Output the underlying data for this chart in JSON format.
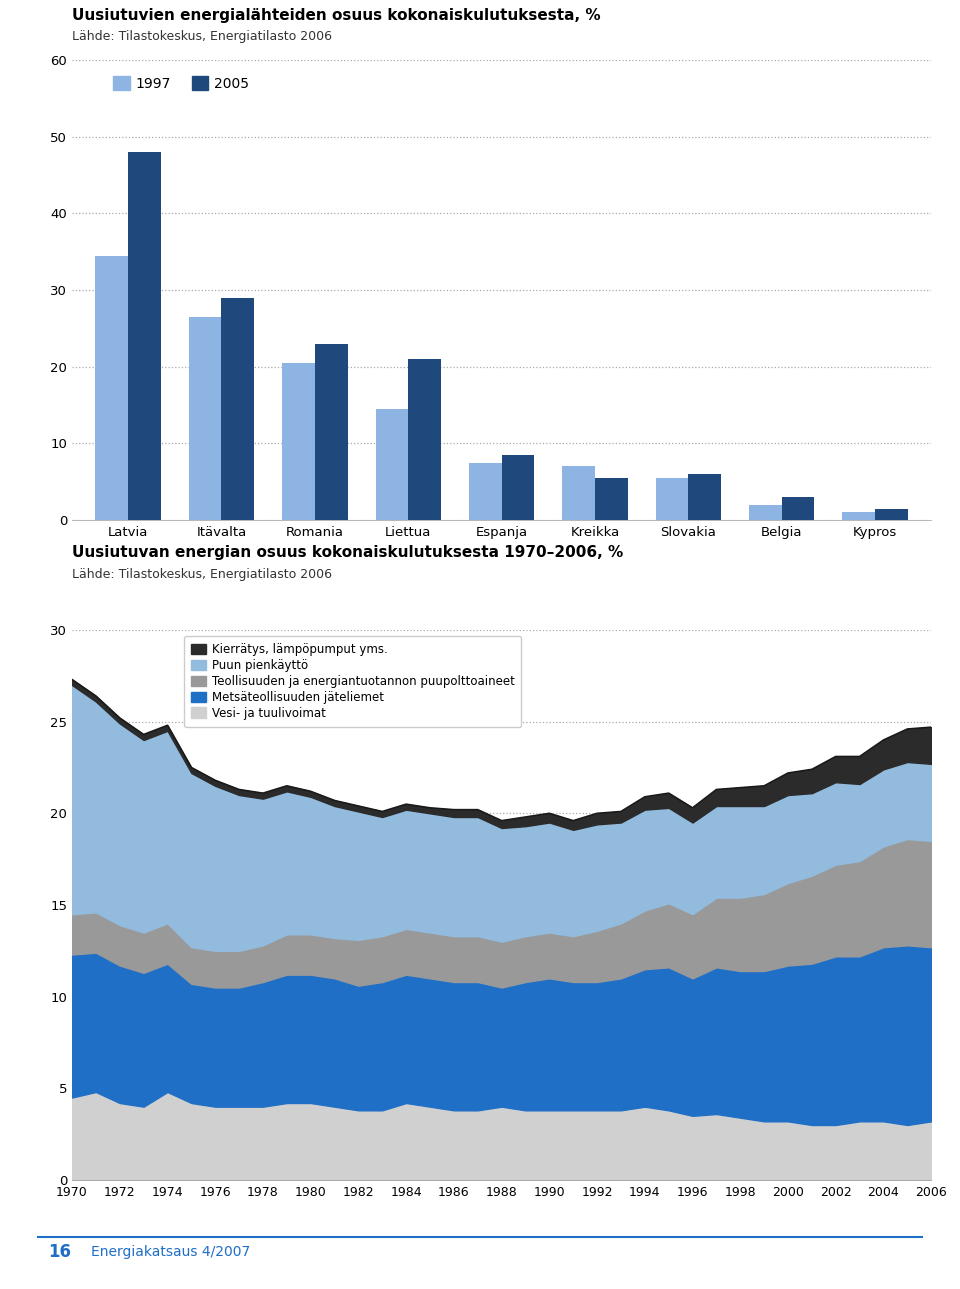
{
  "title1": "Uusiutuvien energialähteiden osuus kokonaiskulutuksesta, %",
  "subtitle1": "Lähde: Tilastokeskus, Energiatilasto 2006",
  "title2": "Uusiutuvan energian osuus kokonaiskulutuksesta 1970–2006, %",
  "subtitle2": "Lähde: Tilastokeskus, Energiatilasto 2006",
  "bar_categories": [
    "Latvia",
    "Itävalta",
    "Romania",
    "Liettua",
    "Espanja",
    "Kreikka",
    "Slovakia",
    "Belgia",
    "Kypros"
  ],
  "bar_color_1997": "#8DB4E2",
  "bar_color_2005": "#1F497D",
  "area_years": [
    1970,
    1971,
    1972,
    1973,
    1974,
    1975,
    1976,
    1977,
    1978,
    1979,
    1980,
    1981,
    1982,
    1983,
    1984,
    1985,
    1986,
    1987,
    1988,
    1989,
    1990,
    1991,
    1992,
    1993,
    1994,
    1995,
    1996,
    1997,
    1998,
    1999,
    2000,
    2001,
    2002,
    2003,
    2004,
    2005,
    2006
  ],
  "vesi_tuuli": [
    4.5,
    4.8,
    4.2,
    4.0,
    4.8,
    4.2,
    4.0,
    4.0,
    4.0,
    4.2,
    4.2,
    4.0,
    3.8,
    3.8,
    4.2,
    4.0,
    3.8,
    3.8,
    4.0,
    3.8,
    3.8,
    3.8,
    3.8,
    3.8,
    4.0,
    3.8,
    3.5,
    3.6,
    3.4,
    3.2,
    3.2,
    3.0,
    3.0,
    3.2,
    3.2,
    3.0,
    3.2
  ],
  "metsateollisuus": [
    7.8,
    7.6,
    7.5,
    7.3,
    7.0,
    6.5,
    6.5,
    6.5,
    6.8,
    7.0,
    7.0,
    7.0,
    6.8,
    7.0,
    7.0,
    7.0,
    7.0,
    7.0,
    6.5,
    7.0,
    7.2,
    7.0,
    7.0,
    7.2,
    7.5,
    7.8,
    7.5,
    8.0,
    8.0,
    8.2,
    8.5,
    8.8,
    9.2,
    9.0,
    9.5,
    9.8,
    9.5
  ],
  "teollisuus_puu": [
    2.2,
    2.2,
    2.2,
    2.2,
    2.2,
    2.0,
    2.0,
    2.0,
    2.0,
    2.2,
    2.2,
    2.2,
    2.5,
    2.5,
    2.5,
    2.5,
    2.5,
    2.5,
    2.5,
    2.5,
    2.5,
    2.5,
    2.8,
    3.0,
    3.2,
    3.5,
    3.5,
    3.8,
    4.0,
    4.2,
    4.5,
    4.8,
    5.0,
    5.2,
    5.5,
    5.8,
    5.8
  ],
  "puun_pienkaytto": [
    12.5,
    11.5,
    11.0,
    10.5,
    10.5,
    9.5,
    9.0,
    8.5,
    8.0,
    7.8,
    7.5,
    7.2,
    7.0,
    6.5,
    6.5,
    6.5,
    6.5,
    6.5,
    6.2,
    6.0,
    6.0,
    5.8,
    5.8,
    5.5,
    5.5,
    5.2,
    5.0,
    5.0,
    5.0,
    4.8,
    4.8,
    4.5,
    4.5,
    4.2,
    4.2,
    4.2,
    4.2
  ],
  "kierratys": [
    0.3,
    0.3,
    0.3,
    0.3,
    0.3,
    0.3,
    0.3,
    0.3,
    0.3,
    0.3,
    0.3,
    0.3,
    0.3,
    0.3,
    0.3,
    0.3,
    0.4,
    0.4,
    0.4,
    0.5,
    0.5,
    0.5,
    0.6,
    0.6,
    0.7,
    0.8,
    0.8,
    0.9,
    1.0,
    1.1,
    1.2,
    1.3,
    1.4,
    1.5,
    1.6,
    1.8,
    2.0
  ],
  "color_vesi_tuuli": "#D0D0D0",
  "color_metsateollisuus": "#1F6FC6",
  "color_teollisuus_puu": "#999999",
  "color_puun_pienkaytto": "#92BBDD",
  "color_kierratys_fill": "#2B2B2B",
  "color_outline": "#1A1A1A",
  "legend_labels": [
    "Kierrätys, lämpöpumput yms.",
    "Puun pienkäyttö",
    "Teollisuuden ja energiantuotannon puupolttoaineet",
    "Metsäteollisuuden jäteliemet",
    "Vesi- ja tuulivoimat"
  ],
  "footer_number": "16",
  "footer_text": "Energiakatsaus 4/2007",
  "background_color": "#FFFFFF",
  "vals_1997": [
    34.5,
    26.5,
    20.5,
    14.5,
    7.5,
    7.0,
    5.5,
    2.0,
    1.0
  ],
  "vals_2005": [
    48.0,
    29.0,
    23.0,
    21.0,
    8.5,
    5.5,
    6.0,
    3.0,
    1.5
  ]
}
